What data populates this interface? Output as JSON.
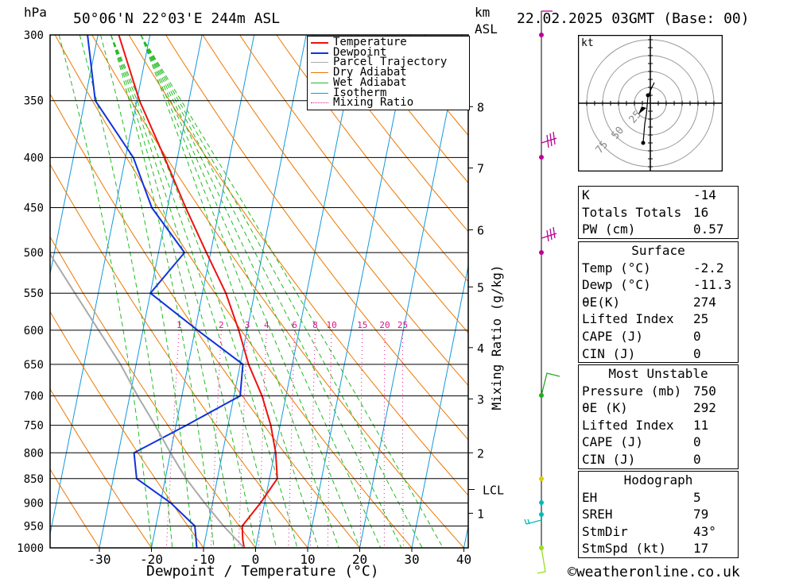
{
  "header": {
    "unit_left": "hPa",
    "location": "50°06'N  22°03'E  244m  ASL",
    "km_label": "km",
    "asl_label": "ASL",
    "datetime": "22.02.2025  03GMT  (Base: 00)"
  },
  "chart_data": {
    "type": "line",
    "title": "50°06'N  22°03'E  244m  ASL",
    "xlabel": "Dewpoint / Temperature (°C)",
    "ylabel": "hPa",
    "x_ticks": [
      -30,
      -20,
      -10,
      0,
      10,
      20,
      30,
      40
    ],
    "pressure_levels": [
      300,
      350,
      400,
      450,
      500,
      550,
      600,
      650,
      700,
      750,
      800,
      850,
      900,
      950,
      1000
    ],
    "km_ticks": [
      {
        "label": "1",
        "p": 922
      },
      {
        "label": "2",
        "p": 800
      },
      {
        "label": "3",
        "p": 705
      },
      {
        "label": "4",
        "p": 625
      },
      {
        "label": "5",
        "p": 542
      },
      {
        "label": "6",
        "p": 474
      },
      {
        "label": "7",
        "p": 410
      },
      {
        "label": "8",
        "p": 355
      }
    ],
    "lcl": {
      "label": "LCL",
      "p": 872
    },
    "mixing_ratio_label": "Mixing Ratio (g/kg)",
    "mixing_ratio_values": [
      "1",
      "2",
      "3",
      "4",
      "6",
      "8",
      "10",
      "15",
      "20",
      "25"
    ],
    "series": [
      {
        "name": "Temperature",
        "color": "#ee1111",
        "points": [
          [
            1000,
            -2.2
          ],
          [
            980,
            -2.8
          ],
          [
            950,
            -3.4
          ],
          [
            900,
            -0.8
          ],
          [
            850,
            1.5
          ],
          [
            800,
            0.2
          ],
          [
            750,
            -1.8
          ],
          [
            700,
            -4.6
          ],
          [
            650,
            -8.4
          ],
          [
            600,
            -11.6
          ],
          [
            550,
            -15.5
          ],
          [
            500,
            -20.8
          ],
          [
            450,
            -26.5
          ],
          [
            400,
            -32.5
          ],
          [
            350,
            -39.5
          ],
          [
            300,
            -46.0
          ]
        ]
      },
      {
        "name": "Dewpoint",
        "color": "#1133dd",
        "points": [
          [
            1000,
            -11.3
          ],
          [
            950,
            -12.5
          ],
          [
            900,
            -18.0
          ],
          [
            850,
            -25.5
          ],
          [
            800,
            -27.0
          ],
          [
            750,
            -18.0
          ],
          [
            700,
            -8.8
          ],
          [
            650,
            -9.5
          ],
          [
            600,
            -19.5
          ],
          [
            550,
            -30.0
          ],
          [
            500,
            -25.0
          ],
          [
            450,
            -33.0
          ],
          [
            400,
            -38.5
          ],
          [
            350,
            -48.0
          ],
          [
            300,
            -52.0
          ]
        ]
      },
      {
        "name": "Parcel Trajectory",
        "color": "#aaaaaa",
        "points": [
          [
            1000,
            -2.2
          ],
          [
            950,
            -7.0
          ],
          [
            900,
            -11.5
          ],
          [
            850,
            -16.0
          ],
          [
            800,
            -20.0
          ],
          [
            750,
            -24.0
          ],
          [
            700,
            -28.5
          ],
          [
            650,
            -33.0
          ],
          [
            600,
            -38.5
          ],
          [
            550,
            -44.5
          ],
          [
            500,
            -51.0
          ],
          [
            450,
            -58.0
          ],
          [
            400,
            -65.0
          ],
          [
            350,
            -72.0
          ],
          [
            300,
            -80.0
          ]
        ]
      }
    ],
    "legend": [
      "Temperature",
      "Dewpoint",
      "Parcel Trajectory",
      "Dry Adiabat",
      "Wet Adiabat",
      "Isotherm",
      "Mixing Ratio"
    ],
    "legend_colors": [
      "#ee1111",
      "#1133dd",
      "#aaaaaa",
      "#ee7700",
      "#22bb22",
      "#1199dd",
      "#dd1188"
    ],
    "legend_position": "top-right"
  },
  "hodograph": {
    "unit": "kt",
    "ring_labels": [
      "25",
      "50",
      "75"
    ]
  },
  "indices": {
    "rows": [
      {
        "label": "K",
        "value": "-14"
      },
      {
        "label": "Totals Totals",
        "value": "16"
      },
      {
        "label": "PW (cm)",
        "value": "0.57"
      }
    ]
  },
  "surface": {
    "title": "Surface",
    "rows": [
      {
        "label": "Temp (°C)",
        "value": "-2.2"
      },
      {
        "label": "Dewp (°C)",
        "value": "-11.3"
      },
      {
        "label": "θE(K)",
        "value": "274"
      },
      {
        "label": "Lifted Index",
        "value": "25"
      },
      {
        "label": "CAPE (J)",
        "value": "0"
      },
      {
        "label": "CIN (J)",
        "value": "0"
      }
    ]
  },
  "most_unstable": {
    "title": "Most Unstable",
    "rows": [
      {
        "label": "Pressure (mb)",
        "value": "750"
      },
      {
        "label": "θE (K)",
        "value": "292"
      },
      {
        "label": "Lifted Index",
        "value": "11"
      },
      {
        "label": "CAPE (J)",
        "value": "0"
      },
      {
        "label": "CIN (J)",
        "value": "0"
      }
    ]
  },
  "hodograph_box": {
    "title": "Hodograph",
    "rows": [
      {
        "label": "EH",
        "value": "5"
      },
      {
        "label": "SREH",
        "value": "79"
      },
      {
        "label": "StmDir",
        "value": "43°"
      },
      {
        "label": "StmSpd (kt)",
        "value": "17"
      }
    ]
  },
  "footer": {
    "copyright": "©weatheronline.co.uk"
  }
}
